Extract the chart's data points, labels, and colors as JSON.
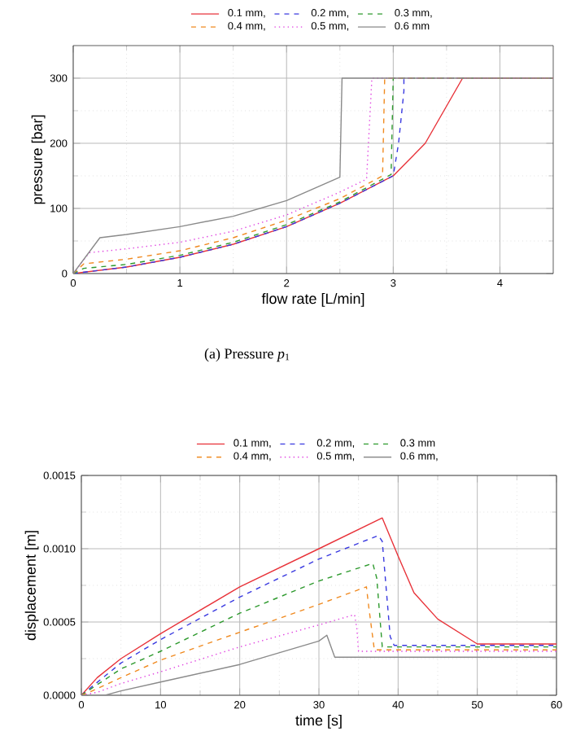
{
  "chart_data": [
    {
      "type": "line",
      "xlabel": "flow rate [L/min]",
      "ylabel": "pressure [bar]",
      "xlim": [
        0,
        4.5
      ],
      "ylim": [
        0,
        350
      ],
      "xticks": [
        0,
        1,
        2,
        3,
        4
      ],
      "yticks": [
        0,
        100,
        200,
        300
      ],
      "grid": true,
      "legend": "top",
      "marker": "none",
      "annotations": [
        "(a)  Pressure *p*$_{1}$"
      ],
      "series": [
        {
          "name": "0.1 mm,",
          "color": "#e8333a",
          "line_style": "solid",
          "x": [
            0,
            0.5,
            1,
            1.5,
            2,
            2.5,
            3,
            3.3,
            3.65,
            4.5
          ],
          "values": [
            0,
            10,
            25,
            45,
            72,
            108,
            150,
            200,
            300,
            300
          ]
        },
        {
          "name": "0.2 mm,",
          "color": "#3a3ae0",
          "line_style": "dashed",
          "x": [
            0,
            0.5,
            1,
            1.5,
            2,
            2.5,
            3,
            3.05,
            3.1,
            3.1,
            4.5
          ],
          "values": [
            0,
            10,
            25,
            45,
            72,
            108,
            150,
            200,
            280,
            300,
            300
          ]
        },
        {
          "name": "0.3 mm,",
          "color": "#2e9a2e",
          "line_style": "dashed",
          "x": [
            0,
            0.1,
            0.5,
            1,
            1.5,
            2,
            2.5,
            2.98,
            3.0,
            4.5
          ],
          "values": [
            0,
            8,
            14,
            28,
            48,
            75,
            110,
            152,
            300,
            300
          ]
        },
        {
          "name": "0.4 mm,",
          "color": "#f08a20",
          "line_style": "dashed",
          "x": [
            0,
            0.1,
            0.5,
            1,
            1.5,
            2,
            2.5,
            2.9,
            2.92,
            4.5
          ],
          "values": [
            0,
            15,
            22,
            35,
            55,
            82,
            115,
            150,
            300,
            300
          ]
        },
        {
          "name": "0.5 mm,",
          "color": "#e040e0",
          "line_style": "dotted",
          "x": [
            0,
            0.15,
            0.5,
            1,
            1.5,
            2,
            2.5,
            2.75,
            2.8,
            4.5
          ],
          "values": [
            0,
            32,
            38,
            48,
            65,
            90,
            125,
            145,
            300,
            300
          ]
        },
        {
          "name": "0.6 mm",
          "color": "#8a8a8a",
          "line_style": "solid",
          "x": [
            0,
            0.25,
            0.5,
            1,
            1.5,
            2,
            2.5,
            2.52,
            4.5
          ],
          "values": [
            0,
            55,
            60,
            72,
            88,
            112,
            148,
            300,
            300
          ]
        }
      ]
    },
    {
      "type": "line",
      "xlabel": "time [s]",
      "ylabel": "displacement [m]",
      "xlim": [
        0,
        60
      ],
      "ylim": [
        0,
        0.0015
      ],
      "xticks": [
        0,
        10,
        20,
        30,
        40,
        50,
        60
      ],
      "yticks": [
        {
          "value": 0,
          "label": "0.0000"
        },
        {
          "value": 0.0005,
          "label": "0.0005"
        },
        {
          "value": 0.001,
          "label": "0.0010"
        },
        {
          "value": 0.0015,
          "label": "0.0015"
        }
      ],
      "grid": true,
      "legend": "top",
      "marker": "none",
      "series": [
        {
          "name": "0.1 mm,",
          "color": "#e8333a",
          "line_style": "solid",
          "x": [
            0,
            2,
            5,
            10,
            20,
            30,
            38,
            40,
            42,
            45,
            50,
            60
          ],
          "values": [
            0,
            0.00012,
            0.00025,
            0.00042,
            0.00074,
            0.001,
            0.00121,
            0.00095,
            0.0007,
            0.00052,
            0.00035,
            0.00035
          ]
        },
        {
          "name": "0.2 mm,",
          "color": "#3a3ae0",
          "line_style": "dashed",
          "x": [
            0,
            5,
            10,
            20,
            30,
            37.5,
            38,
            39,
            39.5,
            60
          ],
          "values": [
            0,
            0.00022,
            0.00038,
            0.00067,
            0.00093,
            0.00109,
            0.00105,
            0.0004,
            0.00034,
            0.00034
          ]
        },
        {
          "name": "0.3 mm",
          "color": "#2e9a2e",
          "line_style": "dashed",
          "x": [
            0,
            5,
            10,
            20,
            30,
            36.8,
            37.3,
            38,
            60
          ],
          "values": [
            0,
            0.00018,
            0.0003,
            0.00056,
            0.00078,
            0.0009,
            0.0008,
            0.00033,
            0.00033
          ]
        },
        {
          "name": "0.4 mm,",
          "color": "#f08a20",
          "line_style": "dashed",
          "x": [
            0,
            1,
            5,
            10,
            20,
            30,
            36,
            36.3,
            37,
            60
          ],
          "values": [
            0,
            2e-05,
            0.00012,
            0.00024,
            0.00043,
            0.00062,
            0.00074,
            0.0006,
            0.00031,
            0.00031
          ]
        },
        {
          "name": "0.5 mm,",
          "color": "#e040e0",
          "line_style": "dotted",
          "x": [
            0,
            2,
            5,
            10,
            20,
            30,
            34.5,
            34.8,
            35,
            60
          ],
          "values": [
            0,
            2e-05,
            8e-05,
            0.00016,
            0.00033,
            0.00048,
            0.00055,
            0.00045,
            0.0003,
            0.0003
          ]
        },
        {
          "name": "0.6 mm,",
          "color": "#8a8a8a",
          "line_style": "solid",
          "x": [
            0,
            3,
            5,
            10,
            20,
            30,
            31,
            32,
            60
          ],
          "values": [
            0,
            0,
            3e-05,
            9e-05,
            0.00021,
            0.00037,
            0.00041,
            0.00026,
            0.00026
          ]
        }
      ]
    }
  ]
}
